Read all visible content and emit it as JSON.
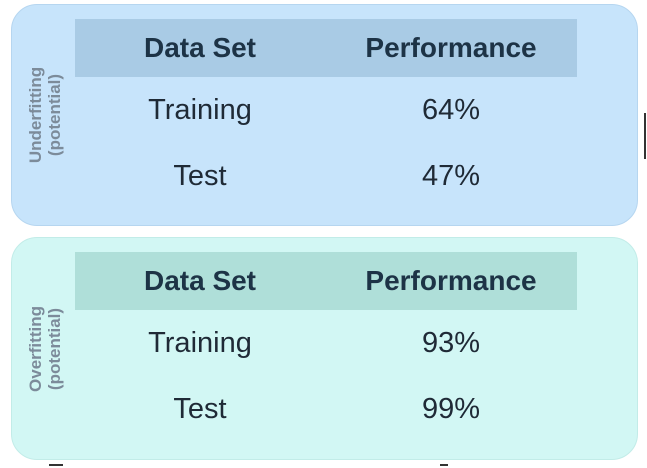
{
  "headers": {
    "dataset": "Data Set",
    "performance": "Performance"
  },
  "underfitting": {
    "label_line1": "Underfitting",
    "label_line2": "(potential)",
    "rows": [
      {
        "dataset": "Training",
        "performance": "64%"
      },
      {
        "dataset": "Test",
        "performance": "47%"
      }
    ]
  },
  "overfitting": {
    "label_line1": "Overfitting",
    "label_line2": "(potential)",
    "rows": [
      {
        "dataset": "Training",
        "performance": "93%"
      },
      {
        "dataset": "Test",
        "performance": "99%"
      }
    ]
  },
  "colors": {
    "underfitting_panel": "#c7e4fb",
    "underfitting_header": "#a9cbe5",
    "overfitting_panel": "#d2f7f4",
    "overfitting_header": "#afdfd9",
    "text": "#1d2b39",
    "side_label": "#7c8b9a"
  }
}
